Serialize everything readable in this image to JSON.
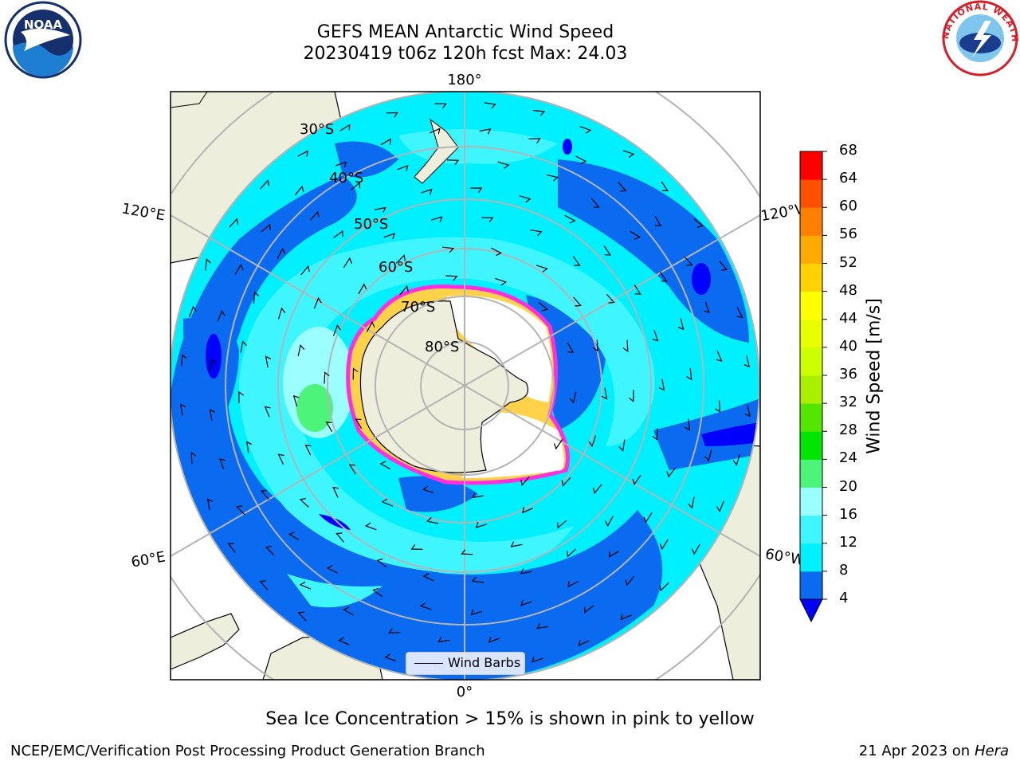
{
  "title": {
    "line1": "GEFS MEAN Antarctic Wind Speed",
    "line2": "20230419 t06z 120h fcst   Max: 24.03"
  },
  "map": {
    "lon_labels": {
      "top": "180°",
      "upper_left": "120°E",
      "upper_right": "120°W",
      "lower_left": "60°E",
      "lower_right": "60°W",
      "bottom": "0°"
    },
    "lat_labels": [
      "30°S",
      "40°S",
      "50°S",
      "60°S",
      "70°S",
      "80°S"
    ],
    "legend_label": "Wind Barbs",
    "colors": {
      "land": "#eeeedc",
      "ice_edge": "#ff2ee0",
      "ice_fringe": "#ffd24a",
      "grid": "#b4b4b4"
    }
  },
  "colorbar": {
    "label": "Wind Speed [m/s]",
    "ticks": [
      "4",
      "8",
      "12",
      "16",
      "20",
      "24",
      "28",
      "32",
      "36",
      "40",
      "44",
      "48",
      "52",
      "56",
      "60",
      "64",
      "68"
    ],
    "colors": [
      "#0a6af0",
      "#00f0ff",
      "#3ff5ff",
      "#9bffff",
      "#4cf57a",
      "#00e600",
      "#55e600",
      "#aaee00",
      "#ccff00",
      "#e7ff00",
      "#ffff00",
      "#ffd200",
      "#ffaa00",
      "#ff8000",
      "#ff5000",
      "#ff0000"
    ],
    "under_color": "#0000ff"
  },
  "caption": "Sea Ice Concentration > 15% is shown in pink to yellow",
  "footer": {
    "left": "NCEP/EMC/Verification Post Processing Product Generation Branch",
    "right_date": "21 Apr 2023 on ",
    "right_host": "Hera"
  },
  "logos": {
    "noaa": "NOAA",
    "nws": "NATIONAL WEATHER SERVICE"
  }
}
